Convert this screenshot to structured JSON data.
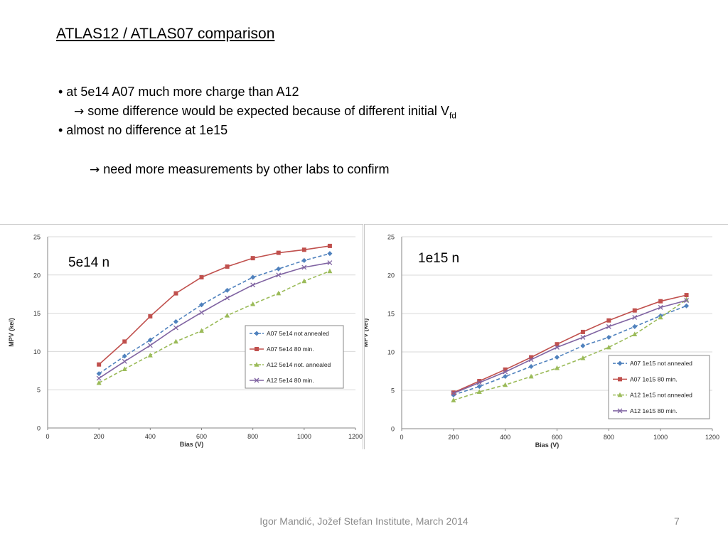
{
  "slide": {
    "title": "ATLAS12 / ATLAS07 comparison",
    "bullets": [
      "• at 5e14  A07 much more charge than A12",
      "some difference would be expected because of different initial V",
      "fd",
      "• almost no difference at 1e15",
      "need more measurements by other labs to confirm"
    ],
    "arrow_glyph": "→",
    "footer": "Igor Mandić, Jožef Stefan Institute, March 2014",
    "page_number": "7"
  },
  "colors": {
    "a07_not_annealed": "#4f81bd",
    "a07_80min": "#c0504d",
    "a12_not_annealed": "#9bbb59",
    "a12_80min": "#8064a2",
    "grid": "#d9d9d9",
    "axis": "#868686"
  },
  "chart_data": [
    {
      "type": "line",
      "annotation": "5e14 n",
      "xlabel": "Bias (V)",
      "ylabel": "MPV (kel)",
      "xlim": [
        0,
        1200
      ],
      "ylim": [
        0,
        25
      ],
      "xticks": [
        "0",
        "200",
        "400",
        "600",
        "800",
        "1000",
        "1200"
      ],
      "yticks": [
        "0",
        "5",
        "10",
        "15",
        "20",
        "25"
      ],
      "grid": true,
      "legend_position": "lower-right",
      "x": [
        200,
        300,
        400,
        500,
        600,
        700,
        800,
        900,
        1000,
        1100
      ],
      "series": [
        {
          "name": "A07 5e14 not annealed",
          "marker": "diamond",
          "dash": true,
          "color_key": "a07_not_annealed",
          "values": [
            7.1,
            9.4,
            11.5,
            13.9,
            16.1,
            18.0,
            19.7,
            20.8,
            21.9,
            22.8
          ]
        },
        {
          "name": "A07 5e14 80 min.",
          "marker": "square",
          "dash": false,
          "color_key": "a07_80min",
          "values": [
            8.3,
            11.3,
            14.6,
            17.6,
            19.7,
            21.1,
            22.2,
            22.9,
            23.3,
            23.8
          ]
        },
        {
          "name": "A12 5e14 not. annealed",
          "marker": "triangle",
          "dash": true,
          "color_key": "a12_not_annealed",
          "values": [
            5.9,
            7.7,
            9.5,
            11.3,
            12.7,
            14.7,
            16.2,
            17.6,
            19.2,
            20.5
          ]
        },
        {
          "name": "A12 5e14 80 min.",
          "marker": "x",
          "dash": false,
          "color_key": "a12_80min",
          "values": [
            6.5,
            8.7,
            10.8,
            13.1,
            15.1,
            17.0,
            18.7,
            20.0,
            21.0,
            21.6
          ]
        }
      ]
    },
    {
      "type": "line",
      "annotation": "1e15 n",
      "xlabel": "Bias (V)",
      "ylabel": "MPV (kel)",
      "xlim": [
        0,
        1200
      ],
      "ylim": [
        0,
        25
      ],
      "xticks": [
        "0",
        "200",
        "400",
        "600",
        "800",
        "1000",
        "1200"
      ],
      "yticks": [
        "0",
        "5",
        "10",
        "15",
        "20",
        "25"
      ],
      "grid": true,
      "legend_position": "lower-right",
      "x": [
        200,
        300,
        400,
        500,
        600,
        700,
        800,
        900,
        1000,
        1100
      ],
      "series": [
        {
          "name": "A07 1e15 not annealed",
          "marker": "diamond",
          "dash": true,
          "color_key": "a07_not_annealed",
          "values": [
            4.4,
            5.5,
            6.8,
            8.1,
            9.3,
            10.8,
            11.9,
            13.3,
            14.7,
            16.0
          ]
        },
        {
          "name": "A07 1e15 80 min.",
          "marker": "square",
          "dash": false,
          "color_key": "a07_80min",
          "values": [
            4.7,
            6.2,
            7.7,
            9.3,
            11.0,
            12.6,
            14.1,
            15.4,
            16.6,
            17.4
          ]
        },
        {
          "name": "A12 1e15 not annealed",
          "marker": "triangle",
          "dash": true,
          "color_key": "a12_not_annealed",
          "values": [
            3.7,
            4.8,
            5.7,
            6.8,
            7.9,
            9.2,
            10.6,
            12.3,
            14.5,
            16.8
          ]
        },
        {
          "name": "A12 1e15 80 min.",
          "marker": "x",
          "dash": false,
          "color_key": "a12_80min",
          "values": [
            4.6,
            6.0,
            7.4,
            9.0,
            10.6,
            11.9,
            13.3,
            14.5,
            15.8,
            16.7
          ]
        }
      ]
    }
  ]
}
